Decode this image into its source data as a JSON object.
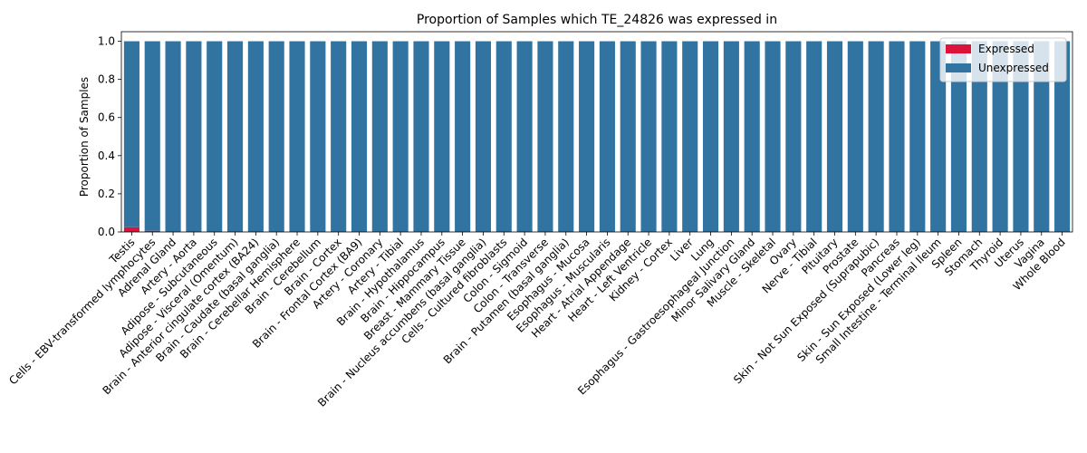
{
  "chart_data": {
    "type": "bar",
    "stacked": true,
    "title": "Proportion of Samples which TE_24826 was expressed in",
    "xlabel": "",
    "ylabel": "Proportion of Samples",
    "ylim": [
      0,
      1.05
    ],
    "yticks": [
      0.0,
      0.2,
      0.4,
      0.6,
      0.8,
      1.0
    ],
    "ytick_labels": [
      "0.0",
      "0.2",
      "0.4",
      "0.6",
      "0.8",
      "1.0"
    ],
    "legend_position": "top-right",
    "categories": [
      "Testis",
      "Cells - EBV-transformed lymphocytes",
      "Adrenal Gland",
      "Artery - Aorta",
      "Adipose - Subcutaneous",
      "Adipose - Visceral (Omentum)",
      "Brain - Anterior cingulate cortex (BA24)",
      "Brain - Caudate (basal ganglia)",
      "Brain - Cerebellar Hemisphere",
      "Brain - Cerebellum",
      "Brain - Cortex",
      "Brain - Frontal Cortex (BA9)",
      "Artery - Coronary",
      "Artery - Tibial",
      "Brain - Hypothalamus",
      "Brain - Hippocampus",
      "Breast - Mammary Tissue",
      "Brain - Nucleus accumbens (basal ganglia)",
      "Cells - Cultured fibroblasts",
      "Colon - Sigmoid",
      "Colon - Transverse",
      "Brain - Putamen (basal ganglia)",
      "Esophagus - Mucosa",
      "Esophagus - Muscularis",
      "Heart - Atrial Appendage",
      "Heart - Left Ventricle",
      "Kidney - Cortex",
      "Liver",
      "Lung",
      "Esophagus - Gastroesophageal Junction",
      "Minor Salivary Gland",
      "Muscle - Skeletal",
      "Ovary",
      "Nerve - Tibial",
      "Pituitary",
      "Prostate",
      "Skin - Not Sun Exposed (Suprapubic)",
      "Pancreas",
      "Skin - Sun Exposed (Lower leg)",
      "Small Intestine - Terminal Ileum",
      "Spleen",
      "Stomach",
      "Thyroid",
      "Uterus",
      "Vagina",
      "Whole Blood"
    ],
    "series": [
      {
        "name": "Expressed",
        "color": "#dc143c",
        "values": [
          0.025,
          0.006,
          0,
          0,
          0,
          0,
          0,
          0,
          0,
          0,
          0,
          0,
          0,
          0,
          0,
          0,
          0,
          0,
          0,
          0,
          0,
          0,
          0,
          0,
          0,
          0,
          0,
          0,
          0,
          0,
          0,
          0,
          0,
          0,
          0,
          0,
          0,
          0,
          0,
          0,
          0,
          0,
          0,
          0,
          0,
          0
        ]
      },
      {
        "name": "Unexpressed",
        "color": "#3274a1",
        "values": [
          0.975,
          0.994,
          1,
          1,
          1,
          1,
          1,
          1,
          1,
          1,
          1,
          1,
          1,
          1,
          1,
          1,
          1,
          1,
          1,
          1,
          1,
          1,
          1,
          1,
          1,
          1,
          1,
          1,
          1,
          1,
          1,
          1,
          1,
          1,
          1,
          1,
          1,
          1,
          1,
          1,
          1,
          1,
          1,
          1,
          1,
          1
        ]
      }
    ]
  }
}
